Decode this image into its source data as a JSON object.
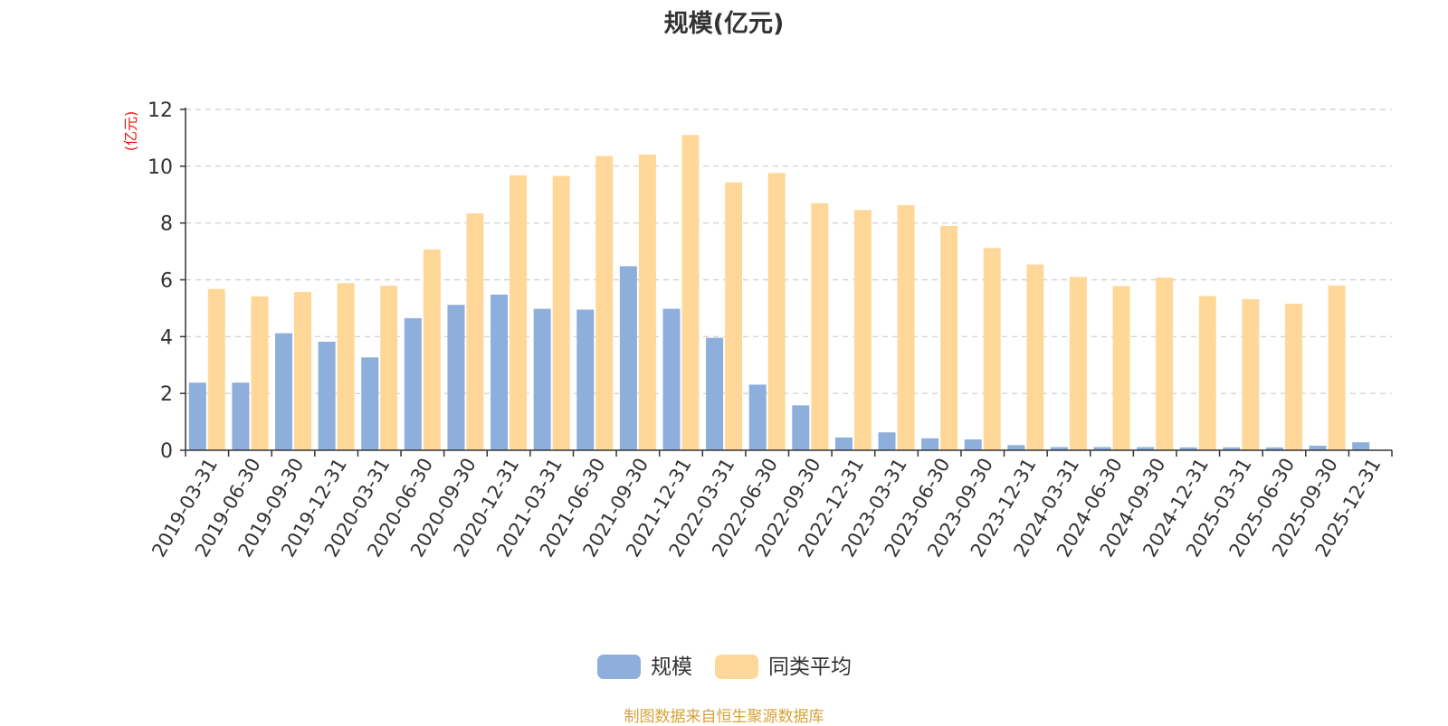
{
  "chart_data": {
    "type": "bar",
    "title": "规模(亿元)",
    "ylabel": "(亿元)",
    "ylim": [
      0,
      12
    ],
    "yticks": [
      0,
      2,
      4,
      6,
      8,
      10,
      12
    ],
    "grid": true,
    "legend_position": "bottom-center",
    "categories": [
      "2019-03-31",
      "2019-06-30",
      "2019-09-30",
      "2019-12-31",
      "2020-03-31",
      "2020-06-30",
      "2020-09-30",
      "2020-12-31",
      "2021-03-31",
      "2021-06-30",
      "2021-09-30",
      "2021-12-31",
      "2022-03-31",
      "2022-06-30",
      "2022-09-30",
      "2022-12-31",
      "2023-03-31",
      "2023-06-30",
      "2023-09-30",
      "2023-12-31",
      "2024-03-31",
      "2024-06-30",
      "2024-09-30",
      "2024-12-31",
      "2025-03-31",
      "2025-06-30",
      "2025-09-30",
      "2025-12-31"
    ],
    "series": [
      {
        "name": "规模",
        "color": "#8eaedb",
        "values": [
          2.38,
          2.38,
          4.12,
          3.82,
          3.27,
          4.65,
          5.12,
          5.48,
          4.98,
          4.95,
          6.48,
          4.98,
          3.96,
          2.31,
          1.58,
          0.45,
          0.63,
          0.42,
          0.38,
          0.18,
          0.11,
          0.11,
          0.11,
          0.1,
          0.1,
          0.1,
          0.16,
          0.28
        ]
      },
      {
        "name": "同类平均",
        "color": "#ffd899",
        "values": [
          5.68,
          5.42,
          5.57,
          5.88,
          5.79,
          7.07,
          8.34,
          9.68,
          9.66,
          10.36,
          10.41,
          11.1,
          9.43,
          9.76,
          8.7,
          8.46,
          8.63,
          7.9,
          7.12,
          6.54,
          6.1,
          5.78,
          6.08,
          5.43,
          5.32,
          5.16,
          5.8,
          null
        ]
      }
    ]
  },
  "source_note": "制图数据来自恒生聚源数据库"
}
